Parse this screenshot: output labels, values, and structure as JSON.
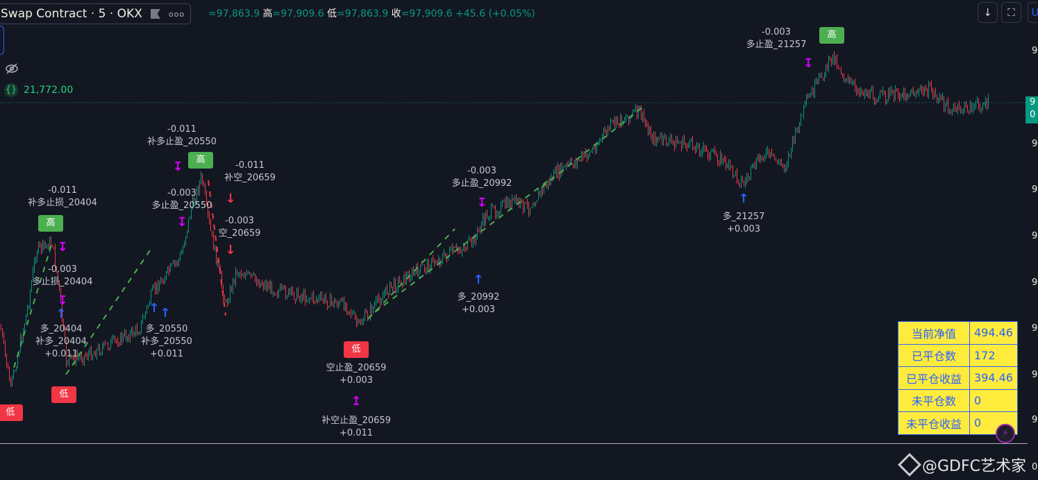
{
  "header": {
    "symbol_title": "Swap Contract · 5 · OKX",
    "more_label": "ooo",
    "ohlc": [
      {
        "key": "",
        "value": "=97,863.9"
      },
      {
        "key": "高",
        "value": "=97,909.6"
      },
      {
        "key": "低",
        "value": "=97,863.9"
      },
      {
        "key": "收",
        "value": "=97,909.6"
      }
    ],
    "change": "+45.6 (+0.05%)"
  },
  "indicator": {
    "value": "21,772.00",
    "icon": "curly-braces-icon"
  },
  "toolbar": {
    "download_icon": "arrow-down-icon",
    "fullscreen_icon": "fullscreen-icon",
    "currency_label": "U"
  },
  "price_axis": {
    "labels": [
      "9",
      "9",
      "9",
      "9",
      "9",
      "9",
      "9",
      "9",
      "9",
      "0"
    ],
    "last_price": [
      "9",
      "0"
    ]
  },
  "colors": {
    "up": "#089981",
    "down": "#f23645",
    "background": "#131722",
    "table_bg": "#ffeb3b",
    "table_text": "#2962ff",
    "long_exit": "#d500f9",
    "entry": "#2962ff",
    "short": "#f23645",
    "trend_line": "#4caf50"
  },
  "signals": [
    {
      "text": "-0.011",
      "sub": "补多止盈_20550"
    },
    {
      "text": "-0.011",
      "sub": "补空_20659"
    },
    {
      "text": "-0.003",
      "sub": "多止盈_20550"
    },
    {
      "text": "-0.003",
      "sub": "空_20659"
    },
    {
      "text": "-0.011",
      "sub": "补多止损_20404"
    },
    {
      "text": "-0.003",
      "sub": "多止损_20404"
    },
    {
      "text": "多_20404",
      "sub": "补多_20404"
    },
    {
      "text": "+0.011",
      "sub": ""
    },
    {
      "text": "多_20550",
      "sub": "补多_20550"
    },
    {
      "text": "+0.003",
      "sub": "+0.011"
    },
    {
      "text": "空止盈_20659",
      "sub": "+0.003"
    },
    {
      "text": "补空止盈_20659",
      "sub": "+0.011"
    },
    {
      "text": "-0.003",
      "sub": "多止盈_20992"
    },
    {
      "text": "多_20992",
      "sub": "+0.003"
    },
    {
      "text": "多_21257",
      "sub": "+0.003"
    },
    {
      "text": "-0.003",
      "sub": "多止盈_21257"
    }
  ],
  "tags": {
    "high": "高",
    "low": "低"
  },
  "stats_table": [
    {
      "label": "当前净值",
      "value": "494.46"
    },
    {
      "label": "已平仓数",
      "value": "172"
    },
    {
      "label": "已平仓收益",
      "value": "394.46"
    },
    {
      "label": "未平仓数",
      "value": "0"
    },
    {
      "label": "未平仓收益",
      "value": "0"
    }
  ],
  "watermark": "@GDFC艺术家"
}
